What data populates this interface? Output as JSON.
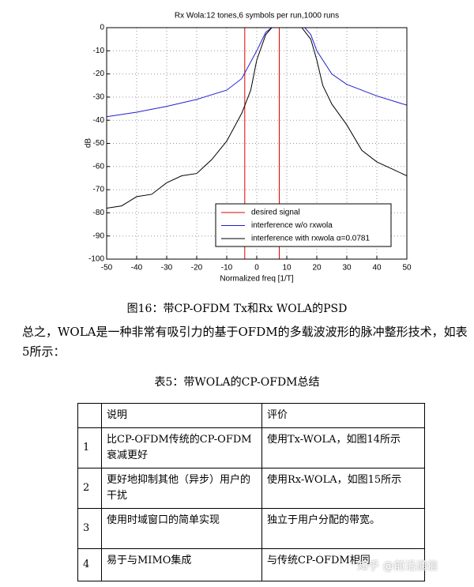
{
  "chart_data": {
    "type": "line",
    "title": "Rx Wola:12 tones,6 symbols per run,1000 runs",
    "xlabel": "Normalized freq [1/T]",
    "ylabel": "dB",
    "xlim": [
      -50,
      50
    ],
    "ylim": [
      -100,
      0
    ],
    "xticks": [
      -50,
      -40,
      -30,
      -20,
      -10,
      0,
      10,
      20,
      30,
      40,
      50
    ],
    "yticks": [
      0,
      -10,
      -20,
      -30,
      -40,
      -50,
      -60,
      -70,
      -80,
      -90,
      -100
    ],
    "grid": true,
    "legend": "lower right",
    "series": [
      {
        "name": "desired signal",
        "color": "#e00000",
        "x": [
          -4,
          -4,
          7.5,
          7.5
        ],
        "values": [
          -100,
          0,
          0,
          -100
        ]
      },
      {
        "name": "interference w/o rxwola",
        "color": "#2020d0",
        "x": [
          -50,
          -40,
          -30,
          -20,
          -10,
          -5,
          0,
          3,
          5,
          16,
          18,
          20,
          25,
          30,
          40,
          50
        ],
        "values": [
          -38.5,
          -36.5,
          -34,
          -31,
          -27,
          -22,
          -10,
          -2,
          0,
          0,
          -3,
          -10,
          -20,
          -24.5,
          -29.5,
          -33.5
        ]
      },
      {
        "name": "interference with rxwola α=0.0781",
        "color": "#000000",
        "x": [
          -50,
          -45,
          -40,
          -35,
          -30,
          -25,
          -20,
          -15,
          -10,
          -5,
          -2,
          0,
          3,
          5,
          15,
          18,
          20,
          22,
          25,
          30,
          35,
          40,
          45,
          50
        ],
        "values": [
          -78,
          -77,
          -73,
          -72,
          -67,
          -64,
          -63,
          -57,
          -49,
          -37,
          -27,
          -14,
          -3,
          0,
          0,
          -5,
          -14,
          -25,
          -33,
          -42,
          -53,
          -58,
          -61,
          -64
        ]
      }
    ]
  },
  "caption": "图16：带CP-OFDM Tx和Rx WOLA的PSD",
  "paragraph": "总之，WOLA是一种非常有吸引力的基于OFDM的多载波波形的脉冲整形技术，如表5所示：",
  "table": {
    "title": "表5：带WOLA的CP-OFDM总结",
    "header": [
      "说明",
      "评价"
    ],
    "rows": [
      [
        "1",
        "比CP-OFDM传统的CP-OFDM衰减更好",
        "使用Tx-WOLA，如图14所示"
      ],
      [
        "2",
        "更好地抑制其他（异步）用户的干扰",
        "使用Rx-WOLA，如图15所示"
      ],
      [
        "3",
        "使用时域窗口的简单实现",
        "独立于用户分配的带宽。"
      ],
      [
        "4",
        "易于与MIMO集成",
        "与传统CP-OFDM相同"
      ]
    ]
  },
  "watermark": "知乎 @前沿通信"
}
